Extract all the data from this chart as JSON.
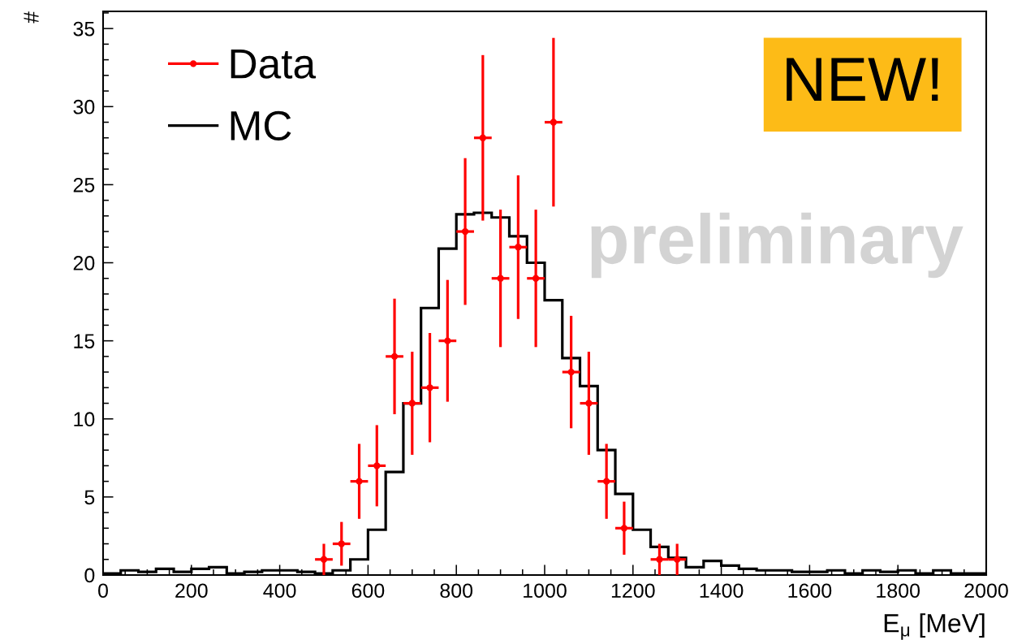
{
  "chart_data": {
    "type": "histogram",
    "xlabel": "E$_{μ}$ [MeV]",
    "ylabel": "#",
    "bins": [
      0,
      40,
      80,
      120,
      160,
      200,
      240,
      280,
      320,
      360,
      400,
      440,
      480,
      520,
      560,
      600,
      640,
      680,
      720,
      760,
      800,
      840,
      880,
      920,
      960,
      1000,
      1040,
      1080,
      1120,
      1160,
      1200,
      1240,
      1280,
      1320,
      1360,
      1400,
      1440,
      1480,
      1520,
      1560,
      1600,
      1640,
      1680,
      1720,
      1760,
      1800,
      1840,
      1880,
      1920,
      1960,
      2000
    ],
    "series": [
      {
        "name": "Data",
        "type": "scatter",
        "color": "#ff0000",
        "marker": "circle",
        "x": [
          500,
          540,
          580,
          620,
          660,
          700,
          740,
          780,
          820,
          860,
          900,
          940,
          980,
          1020,
          1060,
          1100,
          1140,
          1180,
          1260,
          1300
        ],
        "values": [
          1,
          2,
          6,
          7,
          14,
          11,
          12,
          15,
          22,
          28,
          19,
          21,
          19,
          29,
          13,
          11,
          6,
          3,
          1,
          1
        ],
        "errors": [
          1,
          1.4,
          2.4,
          2.6,
          3.7,
          3.3,
          3.5,
          3.9,
          4.7,
          5.3,
          4.4,
          4.6,
          4.4,
          5.4,
          3.6,
          3.3,
          2.4,
          1.7,
          1,
          1
        ],
        "xerrors": [
          20,
          20,
          20,
          20,
          20,
          20,
          20,
          20,
          20,
          20,
          20,
          20,
          20,
          20,
          20,
          20,
          20,
          20,
          20,
          20
        ]
      },
      {
        "name": "MC",
        "color": "#000000",
        "values": [
          0.1,
          0.3,
          0.2,
          0.4,
          0.2,
          0.4,
          0.5,
          0.1,
          0.2,
          0.3,
          0.3,
          0.2,
          0.1,
          0.3,
          1.0,
          2.9,
          6.6,
          11.0,
          17.1,
          20.9,
          23.1,
          23.2,
          22.9,
          21.7,
          20.0,
          17.6,
          13.9,
          12.1,
          8.0,
          5.2,
          2.9,
          1.8,
          1.1,
          0.5,
          0.9,
          0.6,
          0.4,
          0.3,
          0.3,
          0.2,
          0.2,
          0.3,
          0.1,
          0.3,
          0.2,
          0.3,
          0.1,
          0.3,
          0.1,
          0.1
        ]
      }
    ],
    "xlim": [
      0,
      2000
    ],
    "ylim": [
      0,
      36.1
    ],
    "xticks": [
      0,
      200,
      400,
      600,
      800,
      1000,
      1200,
      1400,
      1600,
      1800,
      2000
    ],
    "yticks": [
      0,
      5,
      10,
      15,
      20,
      25,
      30,
      35
    ],
    "legend": "top left",
    "annotations": [
      "NEW!",
      "preliminary"
    ]
  }
}
